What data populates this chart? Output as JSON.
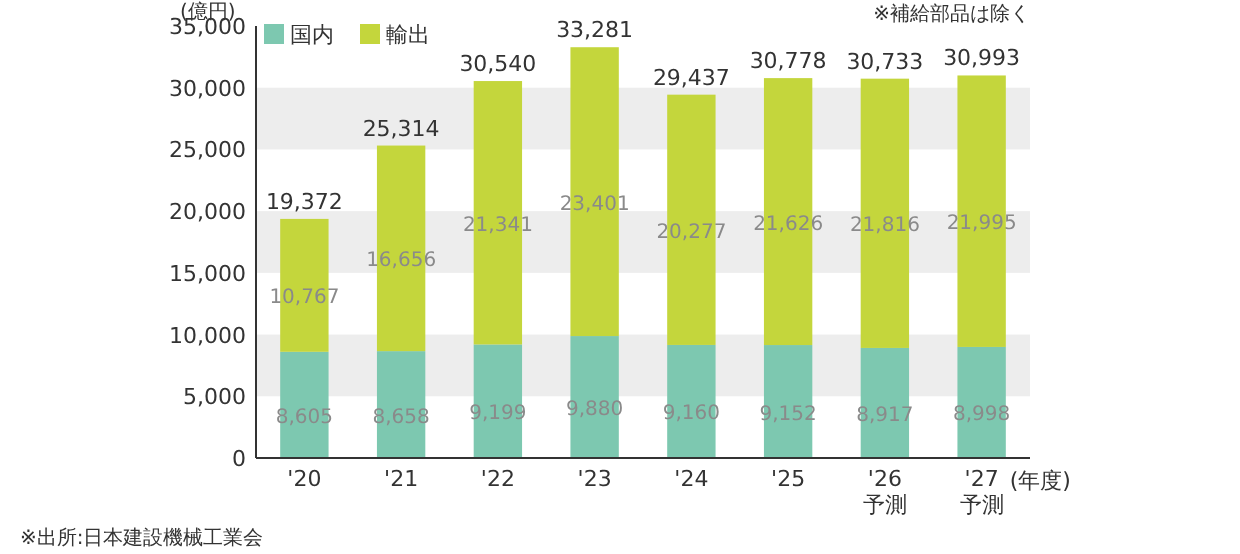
{
  "chart_data": {
    "type": "bar",
    "stacked": true,
    "ylabel": "(億円)",
    "xlabel": "(年度)",
    "categories": [
      "'20",
      "'21",
      "'22",
      "'23",
      "'24",
      "'25",
      "'26\n予測",
      "'27\n予測"
    ],
    "series": [
      {
        "name": "国内",
        "color": "#7dc8b0",
        "values": [
          8605,
          8658,
          9199,
          9880,
          9160,
          9152,
          8917,
          8998
        ],
        "value_labels": [
          "8,605",
          "8,658",
          "9,199",
          "9,880",
          "9,160",
          "9,152",
          "8,917",
          "8,998"
        ]
      },
      {
        "name": "輸出",
        "color": "#c4d63c",
        "values": [
          10767,
          16656,
          21341,
          23401,
          20277,
          21626,
          21816,
          21995
        ],
        "value_labels": [
          "10,767",
          "16,656",
          "21,341",
          "23,401",
          "20,277",
          "21,626",
          "21,816",
          "21,995"
        ]
      }
    ],
    "totals": [
      "19,372",
      "25,314",
      "30,540",
      "33,281",
      "29,437",
      "30,778",
      "30,733",
      "30,993"
    ],
    "ylim": [
      0,
      35000
    ],
    "yticks": [
      0,
      {
        "value": 5000,
        "label": "5,000"
      },
      {
        "value": 10000,
        "label": "10,000"
      },
      {
        "value": 15000,
        "label": "15,000"
      },
      {
        "value": 20000,
        "label": "20,000"
      },
      {
        "value": 25000,
        "label": "25,000"
      },
      {
        "value": 30000,
        "label": "30,000"
      },
      {
        "value": 35000,
        "label": "35,000"
      }
    ],
    "bands": [
      {
        "axis": "y",
        "from": 5000,
        "to": 10000,
        "color": "#ededed"
      },
      {
        "axis": "y",
        "from": 15000,
        "to": 20000,
        "color": "#ededed"
      },
      {
        "axis": "y",
        "from": 25000,
        "to": 30000,
        "color": "#ededed"
      }
    ],
    "legend": "top left",
    "annotations": [
      "※補給部品は除く",
      "※出所:日本建設機械工業会"
    ]
  }
}
